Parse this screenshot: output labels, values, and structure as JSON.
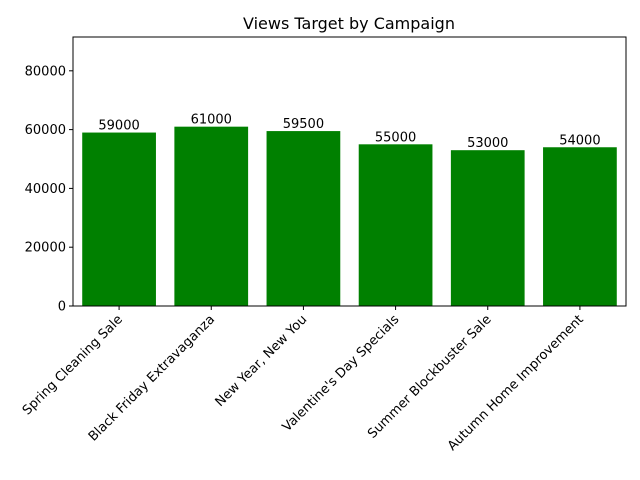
{
  "chart_data": {
    "type": "bar",
    "title": "Views Target by Campaign",
    "xlabel": "",
    "ylabel": "",
    "categories": [
      "Spring Cleaning Sale",
      "Black Friday Extravaganza",
      "New Year, New You",
      "Valentine's Day Specials",
      "Summer Blockbuster Sale",
      "Autumn Home Improvement"
    ],
    "values": [
      59000,
      61000,
      59500,
      55000,
      53000,
      54000
    ],
    "data_labels": [
      "59000",
      "61000",
      "59500",
      "55000",
      "53000",
      "54000"
    ],
    "ylim": [
      0,
      91500
    ],
    "yticks": [
      0,
      20000,
      40000,
      60000,
      80000
    ],
    "ytick_labels": [
      "0",
      "20000",
      "40000",
      "60000",
      "80000"
    ],
    "bar_color": "#008000",
    "grid": false,
    "legend": "none"
  }
}
